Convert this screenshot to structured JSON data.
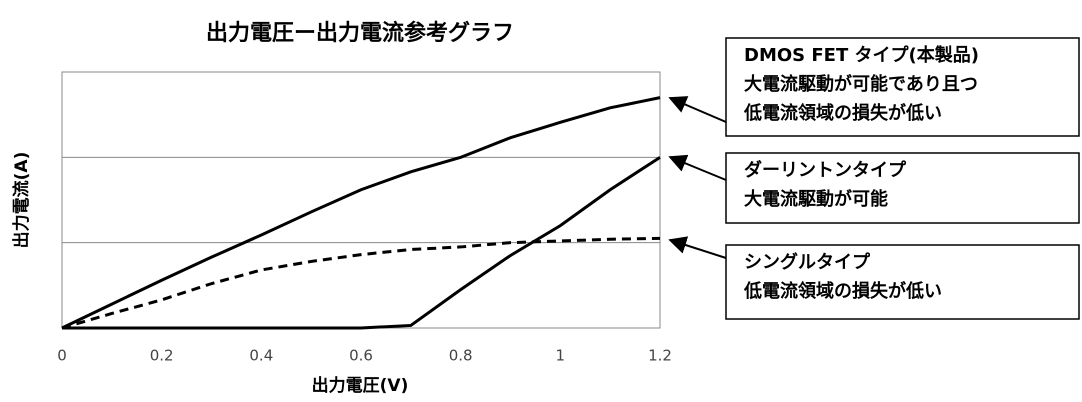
{
  "chart_data": {
    "type": "line",
    "title": "出力電圧ー出力電流参考グラフ",
    "x_label": "出力電圧(V)",
    "y_label": "出力電流(A)",
    "x": [
      0,
      0.1,
      0.2,
      0.3,
      0.4,
      0.5,
      0.6,
      0.7,
      0.8,
      0.9,
      1.0,
      1.1,
      1.2
    ],
    "series": [
      {
        "color": "#000000",
        "dash": false,
        "values": [
          0,
          0.28,
          0.56,
          0.83,
          1.09,
          1.36,
          1.62,
          1.83,
          2.0,
          2.23,
          2.41,
          2.58,
          2.7
        ]
      },
      {
        "color": "#000000",
        "dash": false,
        "values": [
          0,
          0,
          0,
          0,
          0,
          0,
          0,
          0.03,
          0.45,
          0.85,
          1.2,
          1.62,
          2.0
        ]
      },
      {
        "color": "#000000",
        "dash": true,
        "values": [
          0,
          0.17,
          0.33,
          0.52,
          0.68,
          0.78,
          0.86,
          0.92,
          0.95,
          1.0,
          1.02,
          1.04,
          1.05
        ]
      }
    ],
    "xlim": [
      0,
      1.2
    ],
    "xticks": [
      0,
      0.2,
      0.4,
      0.6,
      0.8,
      1,
      1.2
    ],
    "ylim": [
      0,
      3
    ],
    "yticks": [
      0,
      1,
      2,
      3
    ],
    "grid": true,
    "annotations": [
      {
        "lines": [
          "DMOS FET タイプ(本製品)",
          "大電流駆動が可能であり且つ",
          "低電流領域の損失が低い"
        ]
      },
      {
        "lines": [
          "ダーリントンタイプ",
          "大電流駆動が可能"
        ]
      },
      {
        "lines": [
          "シングルタイプ",
          "低電流領域の損失が低い"
        ]
      }
    ]
  }
}
